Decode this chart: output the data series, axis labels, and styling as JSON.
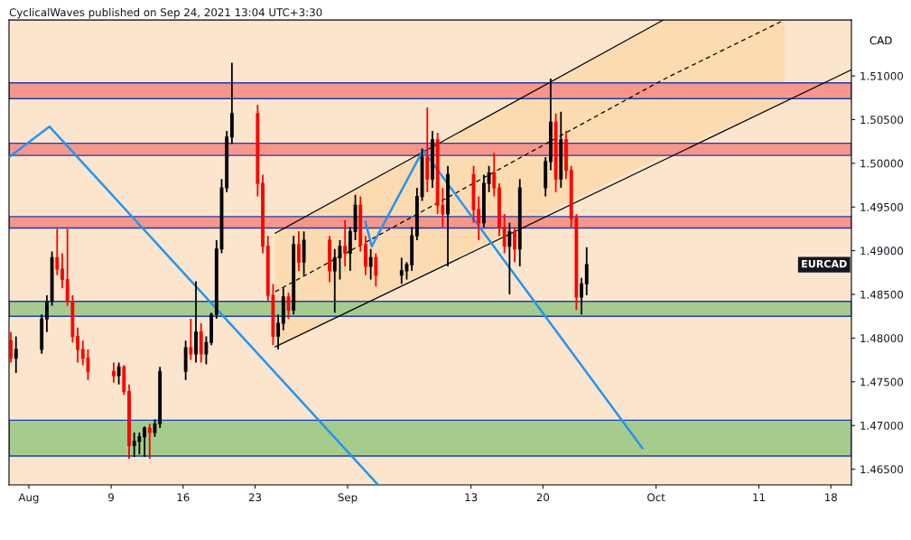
{
  "chart_data": {
    "type": "candlestick",
    "title": "CyclicalWaves published on Sep 24, 2021 13:04 UTC+3:30",
    "ylabel": "CAD",
    "x": [
      "2021-07-30T06:00",
      "2021-07-30T18:00",
      "2021-08-02T06:00",
      "2021-08-02T18:00",
      "2021-08-03T06:00",
      "2021-08-03T18:00",
      "2021-08-04T06:00",
      "2021-08-04T18:00",
      "2021-08-05T06:00",
      "2021-08-05T18:00",
      "2021-08-06T06:00",
      "2021-08-06T18:00",
      "2021-08-09T06:00",
      "2021-08-09T18:00",
      "2021-08-10T06:00",
      "2021-08-10T18:00",
      "2021-08-11T06:00",
      "2021-08-11T18:00",
      "2021-08-12T06:00",
      "2021-08-12T18:00",
      "2021-08-13T06:00",
      "2021-08-13T18:00",
      "2021-08-16T06:00",
      "2021-08-16T18:00",
      "2021-08-17T06:00",
      "2021-08-17T18:00",
      "2021-08-18T06:00",
      "2021-08-18T18:00",
      "2021-08-19T06:00",
      "2021-08-19T18:00",
      "2021-08-20T06:00",
      "2021-08-20T18:00",
      "2021-08-23T06:00",
      "2021-08-23T18:00",
      "2021-08-24T06:00",
      "2021-08-24T18:00",
      "2021-08-25T06:00",
      "2021-08-25T18:00",
      "2021-08-26T06:00",
      "2021-08-26T18:00",
      "2021-08-27T06:00",
      "2021-08-27T18:00",
      "2021-08-30T06:00",
      "2021-08-30T18:00",
      "2021-08-31T06:00",
      "2021-08-31T18:00",
      "2021-09-01T06:00",
      "2021-09-01T18:00",
      "2021-09-02T06:00",
      "2021-09-02T18:00",
      "2021-09-03T06:00",
      "2021-09-03T18:00",
      "2021-09-06T06:00",
      "2021-09-06T18:00",
      "2021-09-07T06:00",
      "2021-09-07T18:00",
      "2021-09-08T06:00",
      "2021-09-08T18:00",
      "2021-09-09T06:00",
      "2021-09-09T18:00",
      "2021-09-10T06:00",
      "2021-09-10T18:00",
      "2021-09-13T06:00",
      "2021-09-13T18:00",
      "2021-09-14T06:00",
      "2021-09-14T18:00",
      "2021-09-15T06:00",
      "2021-09-15T18:00",
      "2021-09-16T06:00",
      "2021-09-16T18:00",
      "2021-09-17T06:00",
      "2021-09-17T18:00",
      "2021-09-20T06:00",
      "2021-09-20T18:00",
      "2021-09-21T06:00",
      "2021-09-21T18:00",
      "2021-09-22T06:00",
      "2021-09-22T18:00",
      "2021-09-23T06:00",
      "2021-09-23T18:00",
      "2021-09-24T06:00"
    ],
    "ohlc": [
      [
        1.4797,
        1.4807,
        1.4772,
        1.4777
      ],
      [
        1.4777,
        1.4802,
        1.476,
        1.4787
      ],
      [
        1.4787,
        1.4827,
        1.4782,
        1.4822
      ],
      [
        1.4822,
        1.4849,
        1.4807,
        1.4842
      ],
      [
        1.4842,
        1.4899,
        1.4837,
        1.4892
      ],
      [
        1.4892,
        1.4925,
        1.4872,
        1.4879
      ],
      [
        1.4879,
        1.4897,
        1.4857,
        1.4867
      ],
      [
        1.4867,
        1.4925,
        1.4837,
        1.4842
      ],
      [
        1.4842,
        1.4849,
        1.4795,
        1.4802
      ],
      [
        1.4802,
        1.4812,
        1.4772,
        1.4787
      ],
      [
        1.4787,
        1.4797,
        1.4769,
        1.4777
      ],
      [
        1.4777,
        1.4787,
        1.4752,
        1.4762
      ],
      [
        1.4762,
        1.4772,
        1.4749,
        1.4757
      ],
      [
        1.4757,
        1.4772,
        1.4747,
        1.4767
      ],
      [
        1.4767,
        1.4769,
        1.4735,
        1.4739
      ],
      [
        1.4739,
        1.4747,
        1.4662,
        1.4677
      ],
      [
        1.4677,
        1.4692,
        1.4664,
        1.4682
      ],
      [
        1.4682,
        1.4692,
        1.4667,
        1.4687
      ],
      [
        1.4687,
        1.4699,
        1.4664,
        1.4697
      ],
      [
        1.4697,
        1.4702,
        1.4662,
        1.4692
      ],
      [
        1.4692,
        1.4707,
        1.4687,
        1.4702
      ],
      [
        1.4702,
        1.4767,
        1.4697,
        1.4762
      ],
      [
        1.4762,
        1.4797,
        1.4752,
        1.4789
      ],
      [
        1.4789,
        1.4822,
        1.4775,
        1.4782
      ],
      [
        1.4782,
        1.4865,
        1.4772,
        1.4807
      ],
      [
        1.4807,
        1.4817,
        1.4772,
        1.4782
      ],
      [
        1.4782,
        1.4802,
        1.477,
        1.4795
      ],
      [
        1.4795,
        1.4829,
        1.4792,
        1.4827
      ],
      [
        1.4827,
        1.4912,
        1.4822,
        1.4902
      ],
      [
        1.4902,
        1.4982,
        1.4897,
        1.4972
      ],
      [
        1.4972,
        1.5037,
        1.4967,
        1.503
      ],
      [
        1.503,
        1.5115,
        1.5022,
        1.5057
      ],
      [
        1.5057,
        1.5067,
        1.4962,
        1.4977
      ],
      [
        1.4977,
        1.4987,
        1.4897,
        1.4905
      ],
      [
        1.4905,
        1.4917,
        1.4842,
        1.4849
      ],
      [
        1.4849,
        1.4862,
        1.4792,
        1.4802
      ],
      [
        1.4802,
        1.4827,
        1.4787,
        1.4817
      ],
      [
        1.4817,
        1.4857,
        1.4809,
        1.4847
      ],
      [
        1.4847,
        1.4852,
        1.4822,
        1.4832
      ],
      [
        1.4832,
        1.4917,
        1.4827,
        1.4907
      ],
      [
        1.4907,
        1.4922,
        1.4877,
        1.4887
      ],
      [
        1.4887,
        1.4922,
        1.4872,
        1.4912
      ],
      [
        1.4912,
        1.4917,
        1.4864,
        1.4877
      ],
      [
        1.4877,
        1.4902,
        1.4829,
        1.4892
      ],
      [
        1.4892,
        1.4912,
        1.4867,
        1.4905
      ],
      [
        1.4905,
        1.4935,
        1.4882,
        1.4897
      ],
      [
        1.4897,
        1.4927,
        1.4877,
        1.4922
      ],
      [
        1.4922,
        1.4964,
        1.4912,
        1.4952
      ],
      [
        1.4952,
        1.4962,
        1.4899,
        1.4907
      ],
      [
        1.4907,
        1.4917,
        1.4872,
        1.4882
      ],
      [
        1.4882,
        1.4902,
        1.4867,
        1.4892
      ],
      [
        1.4892,
        1.4897,
        1.4859,
        1.4872
      ],
      [
        1.4872,
        1.4892,
        1.4862,
        1.4877
      ],
      [
        1.4877,
        1.4887,
        1.4867,
        1.4884
      ],
      [
        1.4884,
        1.4927,
        1.4877,
        1.4917
      ],
      [
        1.4917,
        1.4972,
        1.4912,
        1.4962
      ],
      [
        1.4962,
        1.5017,
        1.4957,
        1.5007
      ],
      [
        1.5007,
        1.5064,
        1.4967,
        1.4982
      ],
      [
        1.4982,
        1.5037,
        1.4972,
        1.5027
      ],
      [
        1.5027,
        1.5035,
        1.4942,
        1.4952
      ],
      [
        1.4952,
        1.4972,
        1.4927,
        1.4942
      ],
      [
        1.4942,
        1.4997,
        1.4882,
        1.4987
      ],
      [
        1.4987,
        1.4997,
        1.4932,
        1.4947
      ],
      [
        1.4947,
        1.4962,
        1.4912,
        1.4932
      ],
      [
        1.4932,
        1.4987,
        1.4927,
        1.4977
      ],
      [
        1.4977,
        1.4997,
        1.4967,
        1.4989
      ],
      [
        1.4989,
        1.5012,
        1.4962,
        1.4972
      ],
      [
        1.4972,
        1.4977,
        1.4917,
        1.4927
      ],
      [
        1.4927,
        1.4942,
        1.4897,
        1.4905
      ],
      [
        1.4905,
        1.4932,
        1.485,
        1.4922
      ],
      [
        1.4922,
        1.4927,
        1.4887,
        1.4902
      ],
      [
        1.4902,
        1.4982,
        1.4882,
        1.4972
      ],
      [
        1.4972,
        1.5007,
        1.4962,
        1.5002
      ],
      [
        1.5002,
        1.5097,
        1.4992,
        1.5047
      ],
      [
        1.5047,
        1.5057,
        1.4967,
        1.4982
      ],
      [
        1.4982,
        1.5059,
        1.4972,
        1.5027
      ],
      [
        1.5027,
        1.5037,
        1.4982,
        1.4992
      ],
      [
        1.4992,
        1.4997,
        1.4927,
        1.4937
      ],
      [
        1.4937,
        1.4942,
        1.4832,
        1.4847
      ],
      [
        1.4847,
        1.4869,
        1.4827,
        1.4862
      ],
      [
        1.4862,
        1.4904,
        1.4849,
        1.4884
      ]
    ],
    "colors": [
      "#ff0000",
      "#000000",
      "#000000",
      "#000000",
      "#000000",
      "#ff0000",
      "#ff0000",
      "#ff0000",
      "#ff0000",
      "#ff0000",
      "#ff0000",
      "#ff0000",
      "#ff0000",
      "#000000",
      "#ff0000",
      "#ff0000",
      "#000000",
      "#000000",
      "#000000",
      "#ff0000",
      "#000000",
      "#000000",
      "#000000",
      "#ff0000",
      "#000000",
      "#ff0000",
      "#000000",
      "#000000",
      "#000000",
      "#000000",
      "#000000",
      "#000000",
      "#ff0000",
      "#ff0000",
      "#ff0000",
      "#ff0000",
      "#000000",
      "#000000",
      "#ff0000",
      "#000000",
      "#ff0000",
      "#000000",
      "#ff0000",
      "#000000",
      "#000000",
      "#ff0000",
      "#000000",
      "#000000",
      "#ff0000",
      "#ff0000",
      "#000000",
      "#ff0000",
      "#000000",
      "#000000",
      "#000000",
      "#000000",
      "#000000",
      "#ff0000",
      "#000000",
      "#ff0000",
      "#ff0000",
      "#000000",
      "#ff0000",
      "#ff0000",
      "#000000",
      "#000000",
      "#ff0000",
      "#ff0000",
      "#ff0000",
      "#000000",
      "#ff0000",
      "#000000",
      "#000000",
      "#000000",
      "#ff0000",
      "#000000",
      "#ff0000",
      "#ff0000",
      "#ff0000",
      "#000000",
      "#000000"
    ],
    "series": [
      {
        "type": "line",
        "color": "#000000",
        "line_style": "dashed",
        "x": [
          "2021-08-24T23:00",
          "2021-10-01T17:17",
          "2021-10-13T11:31"
        ],
        "values": [
          1.4853,
          1.5096,
          1.5164
        ],
        "lower": [
          1.479,
          1.5009,
          1.5071
        ],
        "upper": [
          1.492,
          1.5164,
          1.5164
        ]
      },
      {
        "type": "line",
        "color": "#000000",
        "line_style": "solid",
        "x": [
          "2021-08-24T23:00",
          "2021-10-01T17:17"
        ],
        "values": [
          1.492,
          1.5164
        ]
      },
      {
        "type": "line",
        "color": "#000000",
        "line_style": "solid",
        "x": [
          "2021-08-24T23:00",
          "2021-10-20T00:00"
        ],
        "values": [
          1.479,
          1.5107
        ]
      },
      {
        "type": "line",
        "color": "#2196f3",
        "line_style": "solid",
        "x": [
          "2021-07-30T01:41",
          "2021-08-03T00:00",
          "2021-09-03T23:17"
        ],
        "values": [
          1.5007,
          1.5042,
          1.4632
        ]
      },
      {
        "type": "line",
        "color": "#2196f3",
        "line_style": "solid",
        "x": [
          "2021-09-02T17:31",
          "2021-09-03T08:24",
          "2021-09-08T07:55",
          "2021-09-29T16:05"
        ],
        "values": [
          1.4933,
          1.4905,
          1.5015,
          1.4674
        ]
      }
    ],
    "bands": [
      {
        "axis": "y",
        "from": 1.5074,
        "to": 1.5092,
        "color": "#f7968a"
      },
      {
        "axis": "y",
        "from": 1.5009,
        "to": 1.5023,
        "color": "#f7968a"
      },
      {
        "axis": "y",
        "from": 1.4926,
        "to": 1.4939,
        "color": "#f7968a"
      },
      {
        "axis": "y",
        "from": 1.4825,
        "to": 1.4842,
        "color": "#a5cc8c"
      },
      {
        "axis": "y",
        "from": 1.4665,
        "to": 1.4706,
        "color": "#a5cc8c"
      }
    ],
    "annotations": [
      "EURCAD"
    ],
    "xlim": [
      "2021-07-30T01:41",
      "2021-10-20T00:00"
    ],
    "xticks": [
      {
        "value": "2021-08-01",
        "label": "Aug"
      },
      {
        "value": "2021-08-09",
        "label": "9"
      },
      {
        "value": "2021-08-16",
        "label": "16"
      },
      {
        "value": "2021-08-23",
        "label": "23"
      },
      {
        "value": "2021-09-01",
        "label": "Sep"
      },
      {
        "value": "2021-09-13",
        "label": "13"
      },
      {
        "value": "2021-09-20",
        "label": "20"
      },
      {
        "value": "2021-10-01",
        "label": "Oct"
      },
      {
        "value": "2021-10-11",
        "label": "11"
      },
      {
        "value": "2021-10-18",
        "label": "18"
      }
    ],
    "ylim": [
      1.4632,
      1.5164
    ],
    "yticks": [
      {
        "value": 1.465,
        "label": "1.46500"
      },
      {
        "value": 1.47,
        "label": "1.47000"
      },
      {
        "value": 1.475,
        "label": "1.47500"
      },
      {
        "value": 1.48,
        "label": "1.48000"
      },
      {
        "value": 1.485,
        "label": "1.48500"
      },
      {
        "value": 1.49,
        "label": "1.49000"
      },
      {
        "value": 1.495,
        "label": "1.49500"
      },
      {
        "value": 1.5,
        "label": "1.50000"
      },
      {
        "value": 1.505,
        "label": "1.50500"
      },
      {
        "value": 1.51,
        "label": "1.51000"
      }
    ],
    "grid": false,
    "legend": false
  }
}
